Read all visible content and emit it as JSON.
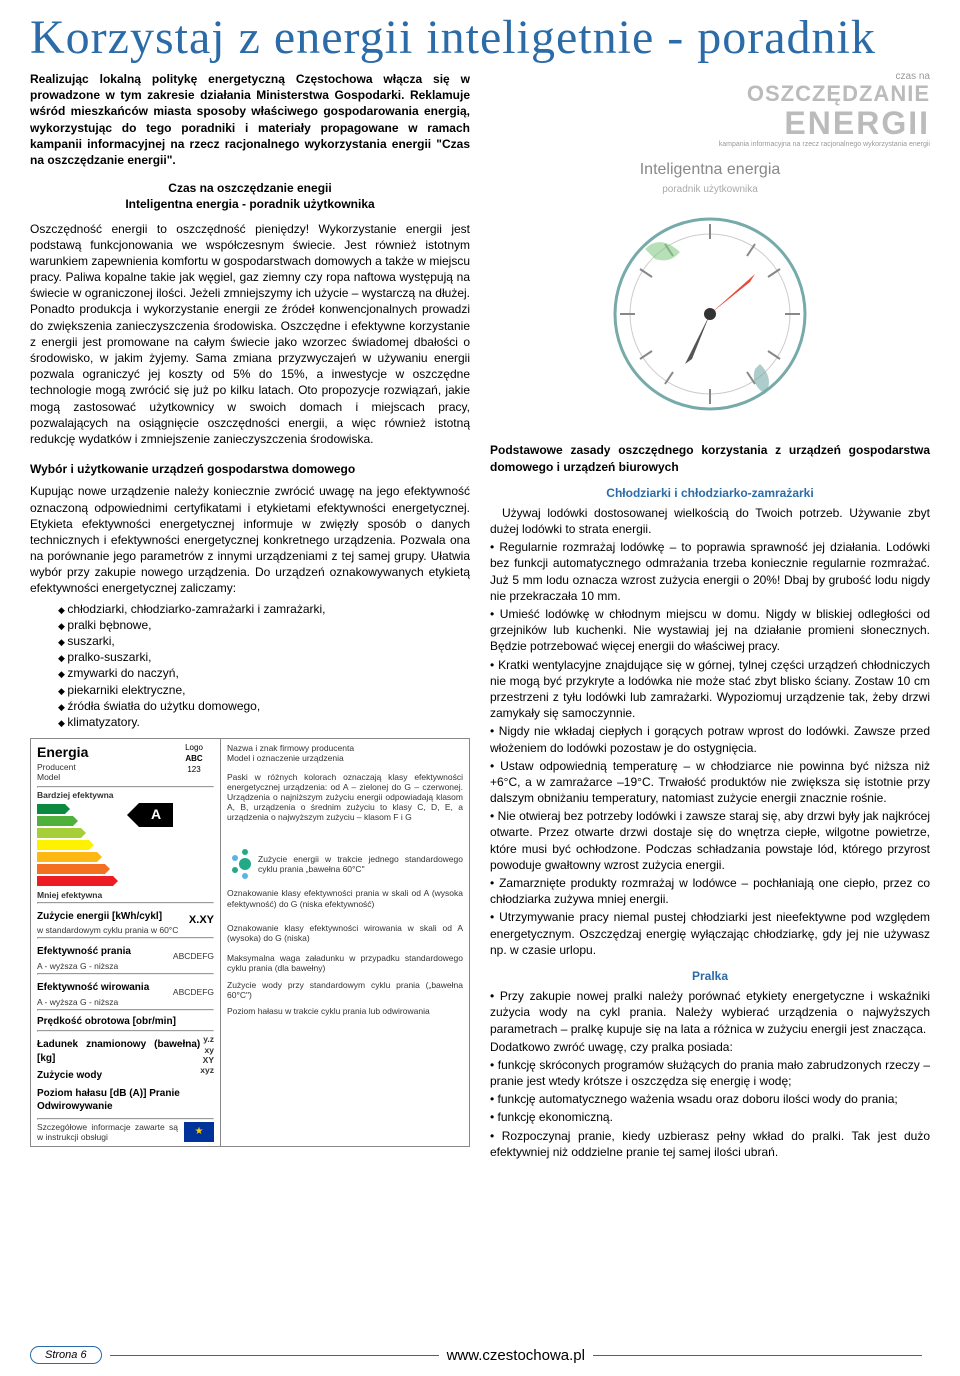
{
  "title": "Korzystaj z energii inteligetnie - poradnik",
  "intro": "Realizując lokalną politykę energetyczną Częstochowa włącza się w prowadzone w tym zakresie działania Ministerstwa Gospodarki. Reklamuje wśród mieszkańców miasta sposoby właściwego gospodarowania energią, wykorzystując do tego poradniki i materiały propagowane w ramach kampanii informacyjnej na rzecz racjonalnego wykorzystania energii \"Czas na oszczędzanie energii\".",
  "subtitle1_line1": "Czas na oszczędzanie enegii",
  "subtitle1_line2": "Inteligentna energia - poradnik użytkownika",
  "body1": "Oszczędność energii to oszczędność pieniędzy! Wykorzystanie energii jest podstawą funkcjonowania we współczesnym świecie. Jest również istotnym warunkiem zapewnienia komfortu w gospodarstwach domowych a także w miejscu pracy. Paliwa kopalne takie jak węgiel, gaz ziemny czy ropa naftowa występują na świecie w ograniczonej ilości. Jeżeli zmniejszymy ich użycie – wystarczą na dłużej. Ponadto produkcja i wykorzystanie energii ze źródeł konwencjonalnych prowadzi do zwiększenia zanieczyszczenia środowiska. Oszczędne i efektywne korzystanie z energii jest promowane na całym świecie jako wzorzec świadomej dbałości o środowisko, w jakim żyjemy. Sama zmiana przyzwyczajeń w używaniu energii pozwala ograniczyć jej koszty od 5% do 15%, a inwestycje w oszczędne technologie mogą zwrócić się już po kilku latach. Oto propozycje rozwiązań, jakie mogą zastosować użytkownicy w swoich domach i miejscach pracy, pozwalających na osiągnięcie oszczędności energii, a więc również istotną redukcję wydatków i zmniejszenie zanieczyszczenia środowiska.",
  "subtitle2": "Wybór i użytkowanie urządzeń gospodarstwa domowego",
  "body2": "Kupując nowe urządzenie należy koniecznie zwrócić uwagę na jego efektywność oznaczoną odpowiednimi certyfikatami i etykietami efektywności energetycznej. Etykieta efektywności energetycznej informuje w zwięzły sposób o danych technicznych i efektywności energetycznej konkretnego urządzenia. Pozwala ona na porównanie jego parametrów z innymi urządzeniami z tej samej grupy. Ułatwia wybór przy zakupie nowego urządzenia. Do urządzeń oznakowywanych etykietą efektywności energetycznej zaliczamy:",
  "appliance_list": [
    "chłodziarki, chłodziarko-zamrażarki i zamrażarki,",
    "pralki bębnowe,",
    "suszarki,",
    "pralko-suszarki,",
    "zmywarki do naczyń,",
    "piekarniki elektryczne,",
    "źródła światła do użytku domowego,",
    "klimatyzatory."
  ],
  "energy_label": {
    "header_energia": "Energia",
    "producent": "Producent",
    "model": "Model",
    "logo": "Logo",
    "abc": "ABC",
    "n123": "123",
    "desc_header": "Nazwa i znak firmowy producenta\nModel i oznaczenie urządzenia",
    "bardziej": "Bardziej efektywna",
    "mniej": "Mniej efektywna",
    "big_letter": "A",
    "arrow_colors": [
      "#0b8a3f",
      "#4fb13c",
      "#a6ce39",
      "#fff200",
      "#fdb813",
      "#f37021",
      "#ed1c24"
    ],
    "arrow_widths": [
      28,
      36,
      44,
      52,
      60,
      68,
      76
    ],
    "arrow_desc": "Paski w różnych kolorach oznaczają klasy efektywności energetycznej urządzenia: od A – zielonej do G – czerwonej. Urządzenia o najniższym zużyciu energii odpowiadają klasom A, B, urządzenia o średnim zużyciu to klasy C, D, E, a urządzenia o najwyższym zużyciu – klasom F i G",
    "flower_desc": "Zużycie energii w trakcie jednego standardowego cyklu prania „bawełna 60°C\"",
    "row_zuzycie": "Zużycie energii [kWh/cykl]",
    "row_zuzycie_sub": "w standardowym cyklu prania w 60°C",
    "row_zuzycie_val": "X.XY",
    "row_zuzycie_desc": "Oznakowanie klasy efektywności prania w skali od A (wysoka efektywność) do G (niska efektywność)",
    "row_ep": "Efektywność prania",
    "row_ep_sub": "A - wyższa   G - niższa",
    "row_ep_val": "ABCDEFG",
    "row_ew": "Efektywność wirowania",
    "row_ew_sub": "A - wyższa   G - niższa",
    "row_ew_val": "ABCDEFG",
    "row_ew_desc": "Oznakowanie klasy efektywności wirowania w skali od A (wysoka) do G (niska)",
    "row_po": "Prędkość obrotowa [obr/min]",
    "row_lz": "Ładunek znamionowy (bawełna) [kg]",
    "row_zw": "Zużycie wody",
    "row_ph": "Poziom hałasu [dB (A)]   Pranie\n                                      Odwirowywanie",
    "row_vals": "y.z\nxy\nXY\nxyz",
    "row_max_desc": "Maksymalna waga załadunku w przypadku standardowego cyklu prania (dla bawełny)",
    "row_water_desc": "Zużycie wody przy standardowym cyklu prania („bawełna 60°C\")",
    "row_noise_desc": "Poziom hałasu w trakcie cyklu prania lub odwirowania",
    "row_footer": "Szczegółowe informacje zawarte są w instrukcji obsługi"
  },
  "logo_block": {
    "line1": "czas na",
    "line2": "OSZCZĘDZANIE",
    "line3": "ENERGII",
    "line4": "kampania informacyjna na rzecz racjonalnego wykorzystania energii"
  },
  "clock_block": {
    "title": "Inteligentna energia",
    "sub": "poradnik użytkownika"
  },
  "rules_header": "Podstawowe zasady oszczędnego korzystania z urządzeń gospodarstwa domowego i urządzeń biurowych",
  "fridge_header": "Chłodziarki i chłodziarko-zamrażarki",
  "fridge_intro": "Używaj lodówki dostosowanej wielkością do Twoich potrzeb. Używanie zbyt dużej lodówki to strata energii.",
  "fridge_tips": [
    "• Regularnie rozmrażaj lodówkę – to poprawia sprawność jej działania. Lodówki bez funkcji automatycznego odmrażania trzeba koniecznie regularnie rozmrażać. Już 5 mm lodu oznacza wzrost zużycia energii o 20%! Dbaj by grubość lodu nigdy nie przekraczała 10 mm.",
    "• Umieść lodówkę w chłodnym miejscu w domu. Nigdy w bliskiej odległości od grzejników lub kuchenki. Nie wystawiaj jej na działanie promieni słonecznych. Będzie potrzebować więcej energii do właściwej pracy.",
    "• Kratki wentylacyjne znajdujące się w górnej, tylnej części urządzeń chłodniczych nie mogą być przykryte a lodówka nie może stać zbyt blisko ściany. Zostaw 10 cm przestrzeni z tyłu lodówki lub zamrażarki. Wypoziomuj urządzenie tak, żeby drzwi zamykały się samoczynnie.",
    "• Nigdy nie wkładaj ciepłych i gorących potraw wprost do lodówki. Zawsze przed włożeniem do lodówki pozostaw je do ostygnięcia.",
    "• Ustaw odpowiednią temperaturę – w chłodziarce nie powinna być niższa niż +6°C, a w zamrażarce –19°C. Trwałość produktów nie zwiększa się istotnie przy dalszym obniżaniu temperatury, natomiast zużycie energii znacznie rośnie.",
    "• Nie otwieraj bez potrzeby lodówki i zawsze staraj się, aby drzwi były jak najkrócej otwarte. Przez otwarte drzwi dostaje się do wnętrza ciepłe, wilgotne powietrze, które musi być ochłodzone. Podczas schładzania powstaje lód, którego przyrost powoduje gwałtowny wzrost zużycia energii.",
    "• Zamarznięte produkty rozmrażaj w lodówce – pochłaniają one ciepło, przez co chłodziarka zużywa mniej energii.",
    "• Utrzymywanie pracy niemal pustej chłodziarki jest nieefektywne pod względem energetycznym. Oszczędzaj energię wyłączając chłodziarkę, gdy jej nie używasz np. w czasie urlopu."
  ],
  "washer_header": "Pralka",
  "washer_intro": "• Przy zakupie nowej pralki należy porównać etykiety energetyczne i wskaźniki zużycia wody na cykl prania. Należy wybierać urządzenia o najwyższych parametrach – pralkę kupuje się na lata a różnica w zużyciu energii jest znacząca.",
  "washer_intro2": "Dodatkowo zwróć uwagę, czy pralka posiada:",
  "washer_tips": [
    "• funkcję skróconych programów służących do prania mało zabrudzonych rzeczy – pranie jest wtedy krótsze i oszczędza się energię i wodę;",
    "• funkcję automatycznego ważenia wsadu oraz doboru ilości wody do prania;",
    "• funkcję ekonomiczną.",
    "• Rozpoczynaj pranie, kiedy uzbierasz pełny wkład do pralki. Tak jest dużo efektywniej niż oddzielne pranie tej samej ilości ubrań."
  ],
  "footer": {
    "page": "Strona 6",
    "url": "www.czestochowa.pl"
  }
}
